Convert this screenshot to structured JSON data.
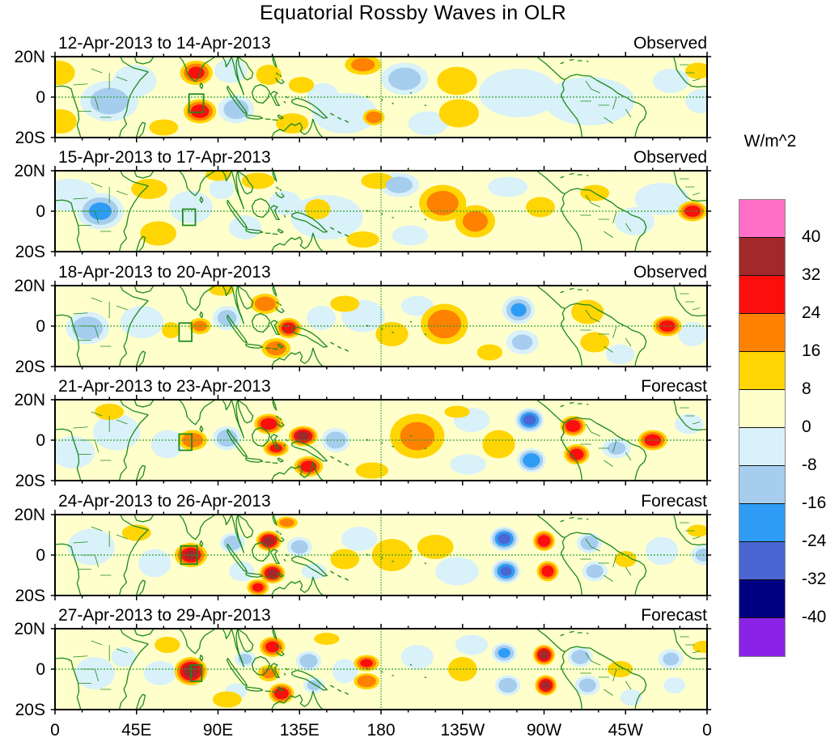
{
  "title": "Equatorial Rossby Waves in OLR",
  "colorbar": {
    "unit_label": "W/m^2",
    "tick_values": [
      40,
      32,
      24,
      16,
      8,
      0,
      -8,
      -16,
      -24,
      -32,
      -40
    ],
    "cell_colors_top_to_bottom": [
      "#FF6FC5",
      "#A2282B",
      "#FB0F0C",
      "#FF8102",
      "#FFD503",
      "#FFFFCC",
      "#D9F1F8",
      "#A6CDEE",
      "#2E9CF4",
      "#4A66D2",
      "#010080",
      "#8B22E8"
    ]
  },
  "axes": {
    "x_ticks": [
      "0",
      "45E",
      "90E",
      "135E",
      "180",
      "135W",
      "90W",
      "45W",
      "0"
    ],
    "x_tick_lons": [
      0,
      45,
      90,
      135,
      180,
      225,
      270,
      315,
      360
    ],
    "y_ticks": [
      "20N",
      "0",
      "20S"
    ],
    "lon_range": [
      0,
      360
    ],
    "lat_range_deg": [
      -20,
      20
    ]
  },
  "chart_data": {
    "type": "heatmap",
    "title": "Equatorial Rossby Waves in OLR",
    "unit": "W/m^2",
    "contour_levels": [
      -40,
      -32,
      -24,
      -16,
      -8,
      0,
      8,
      16,
      24,
      32,
      40
    ],
    "legend_position": "right",
    "anomaly_format": [
      "lon_deg_east",
      "lat_deg",
      "peak_wm2",
      "rx_deg",
      "ry_deg"
    ],
    "panels": [
      {
        "title": "12-Apr-2013 to 14-Apr-2013",
        "label": "Observed",
        "box": {
          "lon": 78,
          "lat": -3,
          "w": 8,
          "h": 9
        },
        "anomalies": [
          [
            30,
            -2,
            -18,
            16,
            10
          ],
          [
            44,
            8,
            -12,
            12,
            8
          ],
          [
            97,
            13,
            -14,
            9,
            6
          ],
          [
            100,
            -6,
            -20,
            10,
            7
          ],
          [
            148,
            0,
            -12,
            9,
            7
          ],
          [
            160,
            -8,
            -9,
            18,
            10
          ],
          [
            193,
            9,
            -20,
            13,
            8
          ],
          [
            206,
            -13,
            -13,
            11,
            6
          ],
          [
            256,
            2,
            -9,
            22,
            12
          ],
          [
            295,
            -2,
            -9,
            25,
            12
          ],
          [
            340,
            8,
            -10,
            10,
            6
          ],
          [
            357,
            -2,
            -14,
            9,
            6
          ],
          [
            2,
            12,
            12,
            9,
            6
          ],
          [
            3,
            -12,
            14,
            9,
            6
          ],
          [
            78,
            12,
            26,
            9,
            6
          ],
          [
            80,
            -7,
            29,
            9,
            6
          ],
          [
            60,
            -15,
            10,
            8,
            4
          ],
          [
            118,
            11,
            16,
            7,
            5
          ],
          [
            131,
            -13,
            12,
            9,
            5
          ],
          [
            136,
            6,
            10,
            7,
            4
          ],
          [
            170,
            16,
            18,
            10,
            5
          ],
          [
            176,
            -10,
            23,
            6,
            4
          ],
          [
            222,
            8,
            15,
            11,
            7
          ],
          [
            223,
            -8,
            15,
            11,
            7
          ],
          [
            355,
            13,
            16,
            7,
            4
          ]
        ]
      },
      {
        "title": "15-Apr-2013 to 17-Apr-2013",
        "label": "Observed",
        "box": {
          "lon": 74,
          "lat": -3,
          "w": 7,
          "h": 8
        },
        "anomalies": [
          [
            25,
            0,
            -25,
            13,
            9
          ],
          [
            8,
            8,
            -9,
            15,
            8
          ],
          [
            75,
            2,
            -10,
            12,
            8
          ],
          [
            105,
            -8,
            -13,
            9,
            6
          ],
          [
            127,
            4,
            -9,
            9,
            6
          ],
          [
            150,
            -3,
            -9,
            20,
            11
          ],
          [
            190,
            13,
            -19,
            11,
            6
          ],
          [
            196,
            -12,
            -14,
            10,
            5
          ],
          [
            250,
            12,
            -10,
            11,
            5
          ],
          [
            320,
            -5,
            -13,
            11,
            7
          ],
          [
            335,
            6,
            -9,
            15,
            8
          ],
          [
            92,
            11,
            -9,
            7,
            5
          ],
          [
            52,
            11,
            14,
            10,
            5
          ],
          [
            57,
            -11,
            15,
            10,
            6
          ],
          [
            90,
            18,
            11,
            7,
            3
          ],
          [
            112,
            15,
            13,
            9,
            4
          ],
          [
            145,
            1,
            10,
            7,
            5
          ],
          [
            170,
            -14,
            14,
            9,
            4
          ],
          [
            178,
            15,
            16,
            9,
            4
          ],
          [
            214,
            4,
            19,
            13,
            9
          ],
          [
            232,
            -5,
            17,
            11,
            8
          ],
          [
            268,
            2,
            9,
            8,
            5
          ],
          [
            298,
            9,
            10,
            8,
            4
          ],
          [
            352,
            0,
            29,
            8,
            5
          ]
        ]
      },
      {
        "title": "18-Apr-2013 to 20-Apr-2013",
        "label": "Observed",
        "box": {
          "lon": 72,
          "lat": -3,
          "w": 7,
          "h": 9
        },
        "anomalies": [
          [
            18,
            -1,
            -21,
            12,
            8
          ],
          [
            48,
            2,
            -9,
            12,
            8
          ],
          [
            95,
            4,
            -18,
            8,
            6
          ],
          [
            147,
            4,
            -11,
            8,
            6
          ],
          [
            170,
            5,
            -9,
            12,
            8
          ],
          [
            200,
            10,
            -11,
            9,
            5
          ],
          [
            256,
            8,
            -25,
            9,
            7
          ],
          [
            258,
            -8,
            -17,
            9,
            6
          ],
          [
            352,
            -4,
            -13,
            8,
            6
          ],
          [
            312,
            -14,
            -9,
            8,
            5
          ],
          [
            80,
            0,
            18,
            6,
            4
          ],
          [
            116,
            11,
            22,
            8,
            5
          ],
          [
            129,
            -1,
            29,
            7,
            5
          ],
          [
            122,
            -11,
            20,
            8,
            5
          ],
          [
            160,
            11,
            12,
            8,
            4
          ],
          [
            186,
            -4,
            10,
            9,
            6
          ],
          [
            215,
            1,
            21,
            13,
            10
          ],
          [
            240,
            -13,
            11,
            7,
            4
          ],
          [
            294,
            7,
            15,
            9,
            6
          ],
          [
            298,
            -8,
            12,
            8,
            5
          ],
          [
            338,
            0,
            29,
            8,
            5
          ],
          [
            92,
            18,
            14,
            7,
            3
          ],
          [
            64,
            -2,
            10,
            5,
            4
          ]
        ]
      },
      {
        "title": "21-Apr-2013 to 23-Apr-2013",
        "label": "Forecast",
        "box": {
          "lon": 72,
          "lat": -1,
          "w": 7,
          "h": 8
        },
        "anomalies": [
          [
            34,
            4,
            -11,
            13,
            9
          ],
          [
            10,
            -6,
            -9,
            12,
            8
          ],
          [
            62,
            -2,
            -13,
            9,
            7
          ],
          [
            95,
            1,
            -21,
            8,
            6
          ],
          [
            155,
            0,
            -21,
            8,
            6
          ],
          [
            230,
            10,
            -9,
            10,
            6
          ],
          [
            262,
            10,
            -35,
            8,
            6
          ],
          [
            263,
            -10,
            -31,
            8,
            6
          ],
          [
            310,
            -4,
            -17,
            8,
            5
          ],
          [
            350,
            8,
            -13,
            8,
            5
          ],
          [
            228,
            -12,
            -9,
            10,
            5
          ],
          [
            76,
            0,
            22,
            8,
            5
          ],
          [
            118,
            8,
            30,
            8,
            5
          ],
          [
            122,
            -4,
            26,
            7,
            4
          ],
          [
            137,
            2,
            36,
            8,
            5
          ],
          [
            140,
            -13,
            29,
            8,
            5
          ],
          [
            175,
            -15,
            12,
            9,
            4
          ],
          [
            200,
            2,
            17,
            15,
            11
          ],
          [
            245,
            -2,
            13,
            9,
            7
          ],
          [
            286,
            7,
            31,
            7,
            5
          ],
          [
            288,
            -7,
            29,
            7,
            5
          ],
          [
            330,
            0,
            30,
            8,
            5
          ],
          [
            222,
            14,
            10,
            7,
            3
          ],
          [
            30,
            14,
            10,
            8,
            4
          ]
        ]
      },
      {
        "title": "24-Apr-2013 to 26-Apr-2013",
        "label": "Forecast",
        "box": {
          "lon": 74,
          "lat": 0,
          "w": 9,
          "h": 9
        },
        "anomalies": [
          [
            20,
            4,
            -13,
            13,
            9
          ],
          [
            55,
            -4,
            -11,
            9,
            7
          ],
          [
            98,
            6,
            -21,
            7,
            5
          ],
          [
            103,
            -8,
            -15,
            7,
            5
          ],
          [
            135,
            4,
            -19,
            7,
            5
          ],
          [
            143,
            -8,
            -15,
            7,
            4
          ],
          [
            168,
            8,
            -9,
            10,
            6
          ],
          [
            248,
            8,
            -35,
            8,
            6
          ],
          [
            249,
            -8,
            -33,
            8,
            6
          ],
          [
            295,
            6,
            -21,
            7,
            5
          ],
          [
            298,
            -8,
            -19,
            7,
            5
          ],
          [
            335,
            2,
            -13,
            9,
            7
          ],
          [
            358,
            0,
            -17,
            7,
            5
          ],
          [
            222,
            -8,
            -9,
            12,
            7
          ],
          [
            45,
            11,
            11,
            8,
            4
          ],
          [
            75,
            0,
            33,
            9,
            6
          ],
          [
            118,
            7,
            36,
            7,
            5
          ],
          [
            120,
            -9,
            34,
            7,
            5
          ],
          [
            112,
            -16,
            27,
            6,
            4
          ],
          [
            160,
            -2,
            10,
            8,
            5
          ],
          [
            186,
            0,
            14,
            11,
            8
          ],
          [
            210,
            4,
            13,
            10,
            6
          ],
          [
            270,
            7,
            31,
            6,
            5
          ],
          [
            272,
            -8,
            29,
            6,
            5
          ],
          [
            315,
            -2,
            16,
            6,
            4
          ],
          [
            355,
            12,
            10,
            6,
            3
          ],
          [
            128,
            16,
            20,
            6,
            3
          ]
        ]
      },
      {
        "title": "27-Apr-2013 to 29-Apr-2013",
        "label": "Forecast",
        "box": {
          "lon": 78,
          "lat": -2,
          "w": 6,
          "h": 8
        },
        "anomalies": [
          [
            22,
            -2,
            -13,
            11,
            8
          ],
          [
            38,
            6,
            -15,
            7,
            5
          ],
          [
            58,
            -2,
            -11,
            9,
            6
          ],
          [
            105,
            5,
            -17,
            6,
            4
          ],
          [
            100,
            -11,
            -11,
            6,
            4
          ],
          [
            140,
            4,
            -21,
            7,
            5
          ],
          [
            143,
            -8,
            -17,
            6,
            4
          ],
          [
            160,
            -1,
            -11,
            7,
            6
          ],
          [
            200,
            6,
            -9,
            9,
            6
          ],
          [
            248,
            8,
            -25,
            7,
            5
          ],
          [
            250,
            -8,
            -23,
            7,
            5
          ],
          [
            290,
            6,
            -21,
            7,
            5
          ],
          [
            294,
            -8,
            -19,
            7,
            5
          ],
          [
            318,
            -14,
            -11,
            6,
            4
          ],
          [
            340,
            5,
            -17,
            7,
            5
          ],
          [
            342,
            -8,
            -15,
            6,
            4
          ],
          [
            230,
            12,
            -9,
            9,
            5
          ],
          [
            75,
            -1,
            38,
            9,
            7
          ],
          [
            62,
            12,
            12,
            7,
            4
          ],
          [
            95,
            -15,
            14,
            8,
            4
          ],
          [
            120,
            11,
            28,
            7,
            5
          ],
          [
            125,
            -12,
            30,
            7,
            5
          ],
          [
            118,
            -2,
            18,
            6,
            4
          ],
          [
            172,
            3,
            26,
            7,
            4
          ],
          [
            172,
            -6,
            24,
            7,
            4
          ],
          [
            150,
            15,
            12,
            7,
            3
          ],
          [
            225,
            0,
            13,
            8,
            6
          ],
          [
            270,
            7,
            37,
            6,
            5
          ],
          [
            271,
            -8,
            35,
            6,
            5
          ],
          [
            312,
            0,
            16,
            7,
            4
          ],
          [
            358,
            11,
            10,
            6,
            3
          ]
        ]
      }
    ]
  }
}
